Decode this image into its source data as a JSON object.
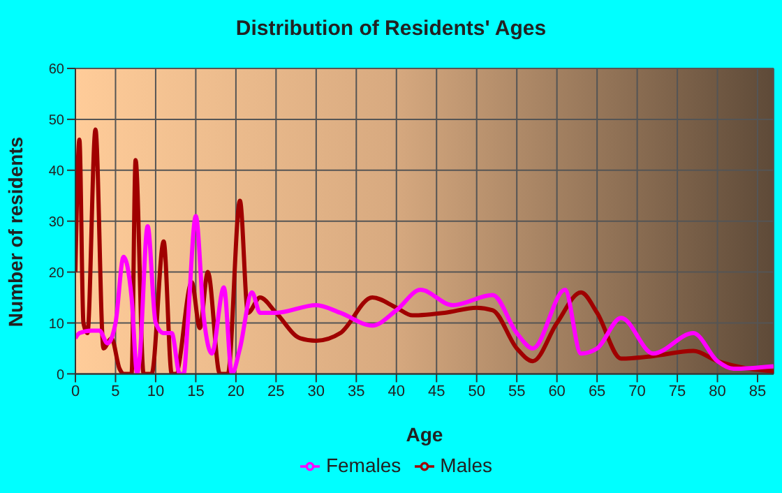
{
  "chart_data": {
    "type": "line",
    "title": "Distribution of Residents' Ages",
    "xlabel": "Age",
    "ylabel": "Number of residents",
    "xlim": [
      0,
      87
    ],
    "xticks": [
      0,
      5,
      10,
      15,
      20,
      25,
      30,
      35,
      40,
      45,
      50,
      55,
      60,
      65,
      70,
      75,
      80,
      85
    ],
    "ylim": [
      0,
      60
    ],
    "yticks": [
      0,
      10,
      20,
      30,
      40,
      50,
      60
    ],
    "grid": true,
    "legend": "bottom",
    "marker": "none",
    "series": [
      {
        "name": "Males",
        "color": "#a00000",
        "x": [
          0,
          0.5,
          1,
          1.5,
          2.5,
          3.5,
          4.5,
          5.5,
          6,
          7,
          7.5,
          8.5,
          9.5,
          11,
          12,
          12.5,
          14.5,
          15.5,
          16.5,
          18,
          19,
          20.5,
          21.5,
          23,
          25,
          28,
          30,
          33,
          37,
          40,
          42,
          46,
          50,
          52,
          55,
          57,
          60,
          63,
          65,
          68,
          72,
          77,
          80,
          84,
          87
        ],
        "values": [
          20,
          46,
          10,
          8,
          48,
          5,
          7,
          1,
          0,
          0,
          42,
          0,
          0,
          26,
          0,
          0,
          18,
          9,
          20,
          0,
          0,
          34,
          12,
          15,
          12,
          7,
          6.5,
          8,
          15,
          13,
          11.5,
          12,
          13,
          12.5,
          5,
          2.5,
          10,
          16,
          12,
          3,
          3.5,
          4.5,
          2.5,
          1,
          0.5
        ]
      },
      {
        "name": "Females",
        "color": "#ff00ff",
        "x": [
          0,
          0.5,
          2,
          3,
          4,
          5,
          6,
          7,
          7.7,
          8,
          9,
          10,
          11,
          12,
          13,
          13.5,
          14,
          15,
          16,
          17,
          18.5,
          19.5,
          20.5,
          22,
          23,
          25,
          30,
          33,
          37,
          40,
          43,
          47,
          52,
          55,
          57,
          61,
          63,
          65,
          68,
          72,
          77,
          80,
          82,
          87
        ],
        "values": [
          7,
          8,
          8.5,
          8.5,
          6,
          10,
          23,
          15,
          0,
          3,
          29,
          10,
          8,
          8,
          0,
          0,
          10,
          31,
          11,
          4,
          17,
          0,
          5,
          16,
          12,
          12,
          13.5,
          12,
          9.5,
          12.5,
          16.5,
          13.5,
          15.5,
          8,
          5,
          16.5,
          4,
          5,
          11,
          4,
          8,
          2.5,
          1,
          1.5
        ]
      }
    ]
  }
}
